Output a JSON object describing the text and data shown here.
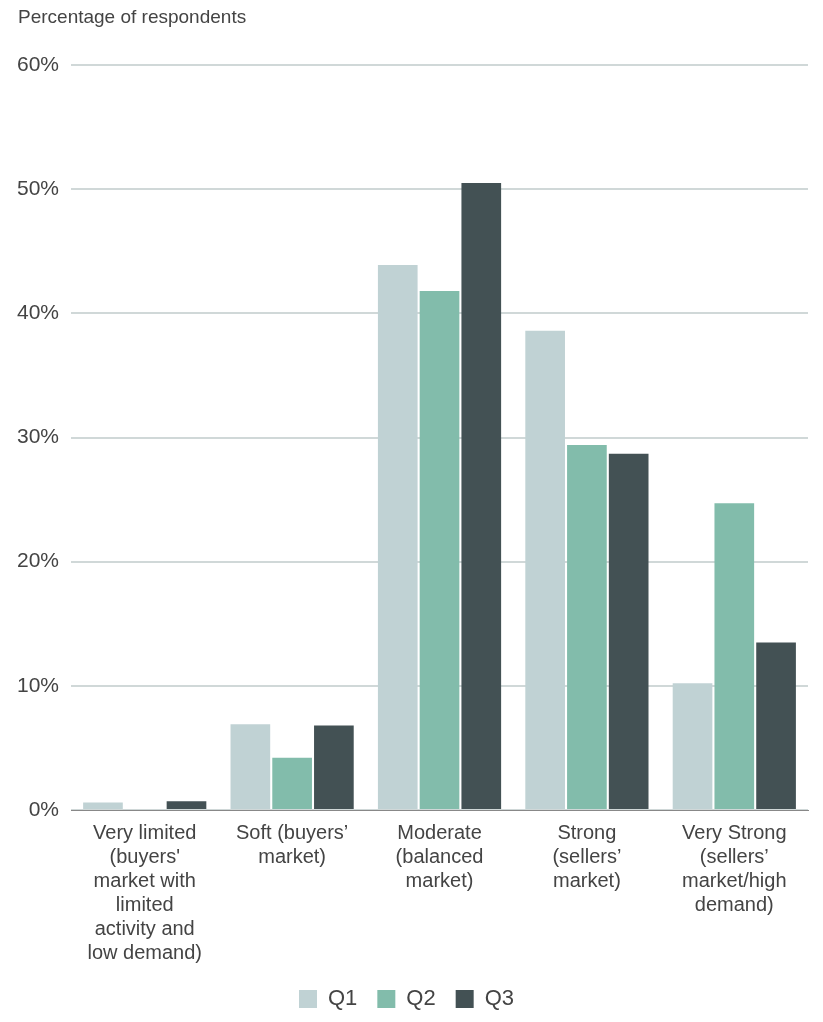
{
  "chart_data": {
    "type": "bar",
    "ylabel": "Percentage of respondents",
    "categories": [
      "Very limited (buyers' market with limited activity and low demand)",
      "Soft (buyers’ market)",
      "Moderate (balanced market)",
      "Strong (sellers’ market)",
      "Very Strong (sellers’ market/high demand)"
    ],
    "series": [
      {
        "name": "Q1",
        "color": "#c0d2d4",
        "values": [
          0.6,
          6.9,
          43.9,
          38.6,
          10.2
        ]
      },
      {
        "name": "Q2",
        "color": "#82bcab",
        "values": [
          0,
          4.2,
          41.8,
          29.4,
          24.7
        ]
      },
      {
        "name": "Q3",
        "color": "#435154",
        "values": [
          0.7,
          6.8,
          50.5,
          28.7,
          13.5
        ]
      }
    ],
    "ylim": [
      0,
      60
    ],
    "yticks": [
      {
        "value": 0,
        "label": "0%"
      },
      {
        "value": 10,
        "label": "10%"
      },
      {
        "value": 20,
        "label": "20%"
      },
      {
        "value": 30,
        "label": "30%"
      },
      {
        "value": 40,
        "label": "40%"
      },
      {
        "value": 50,
        "label": "50%"
      },
      {
        "value": 60,
        "label": "60%"
      }
    ],
    "grid": "y",
    "legend": "bottom"
  }
}
